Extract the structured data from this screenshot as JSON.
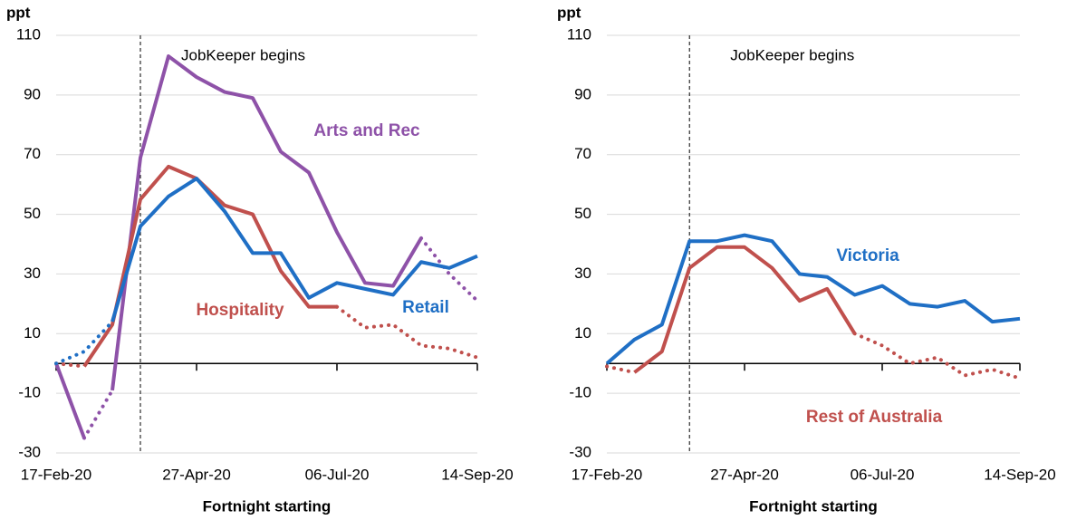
{
  "chart_data": [
    {
      "type": "line",
      "y_label": "ppt",
      "x_label": "Fortnight starting",
      "annotation": "JobKeeper begins",
      "categories": [
        "17-Feb-20",
        null,
        null,
        null,
        null,
        "27-Apr-20",
        null,
        null,
        null,
        null,
        "06-Jul-20",
        null,
        null,
        null,
        null,
        "14-Sep-20"
      ],
      "ylim": [
        -30,
        110
      ],
      "yticks": [
        -30,
        -10,
        10,
        30,
        50,
        70,
        90,
        110
      ],
      "grid": true,
      "series": [
        {
          "name": "Arts and Rec",
          "color": "#8e52a8",
          "values": [
            null,
            null,
            -9,
            69,
            103,
            96,
            91,
            89,
            71,
            64,
            44,
            27,
            26,
            42,
            null,
            null
          ]
        },
        {
          "color": "#8e52a8",
          "values": [
            0,
            -25,
            null,
            null,
            null,
            null,
            null,
            null,
            null,
            null,
            null,
            null,
            null,
            null,
            null,
            null
          ]
        },
        {
          "color": "#8e52a8",
          "line_style": "dotted",
          "values": [
            null,
            -25,
            -9,
            null,
            null,
            null,
            null,
            null,
            null,
            null,
            null,
            null,
            null,
            42,
            30,
            21
          ]
        },
        {
          "name": "Hospitality",
          "color": "#c0504d",
          "values": [
            null,
            -1,
            13,
            55,
            66,
            62,
            53,
            50,
            31,
            19,
            19,
            null,
            null,
            null,
            null,
            null
          ]
        },
        {
          "color": "#c0504d",
          "line_style": "dotted",
          "values": [
            0,
            -1,
            null,
            null,
            null,
            null,
            null,
            null,
            null,
            null,
            19,
            12,
            13,
            6,
            5,
            2
          ]
        },
        {
          "name": "Retail",
          "color": "#1f6fc5",
          "values": [
            null,
            null,
            14,
            46,
            56,
            62,
            51,
            37,
            37,
            22,
            27,
            25,
            23,
            34,
            32,
            36
          ]
        },
        {
          "color": "#1f6fc5",
          "line_style": "dotted",
          "values": [
            0,
            4,
            14,
            null,
            null,
            null,
            null,
            null,
            null,
            null,
            null,
            null,
            null,
            null,
            null,
            null
          ]
        }
      ]
    },
    {
      "type": "line",
      "y_label": "ppt",
      "x_label": "Fortnight starting",
      "annotation": "JobKeeper begins",
      "categories": [
        "17-Feb-20",
        null,
        null,
        null,
        null,
        "27-Apr-20",
        null,
        null,
        null,
        null,
        "06-Jul-20",
        null,
        null,
        null,
        null,
        "14-Sep-20"
      ],
      "ylim": [
        -30,
        110
      ],
      "yticks": [
        -30,
        -10,
        10,
        30,
        50,
        70,
        90,
        110
      ],
      "grid": true,
      "series": [
        {
          "name": "Victoria",
          "color": "#1f6fc5",
          "values": [
            0,
            8,
            13,
            41,
            41,
            43,
            41,
            30,
            29,
            23,
            26,
            20,
            19,
            21,
            14,
            15
          ]
        },
        {
          "name": "Rest of Australia",
          "color": "#c0504d",
          "values": [
            null,
            -3,
            4,
            32,
            39,
            39,
            32,
            21,
            25,
            10,
            null,
            null,
            null,
            null,
            null,
            null
          ]
        },
        {
          "color": "#c0504d",
          "line_style": "dotted",
          "values": [
            -1,
            -3,
            null,
            null,
            null,
            null,
            null,
            null,
            null,
            10,
            6,
            0,
            2,
            -4,
            -2,
            -5
          ]
        }
      ]
    }
  ]
}
